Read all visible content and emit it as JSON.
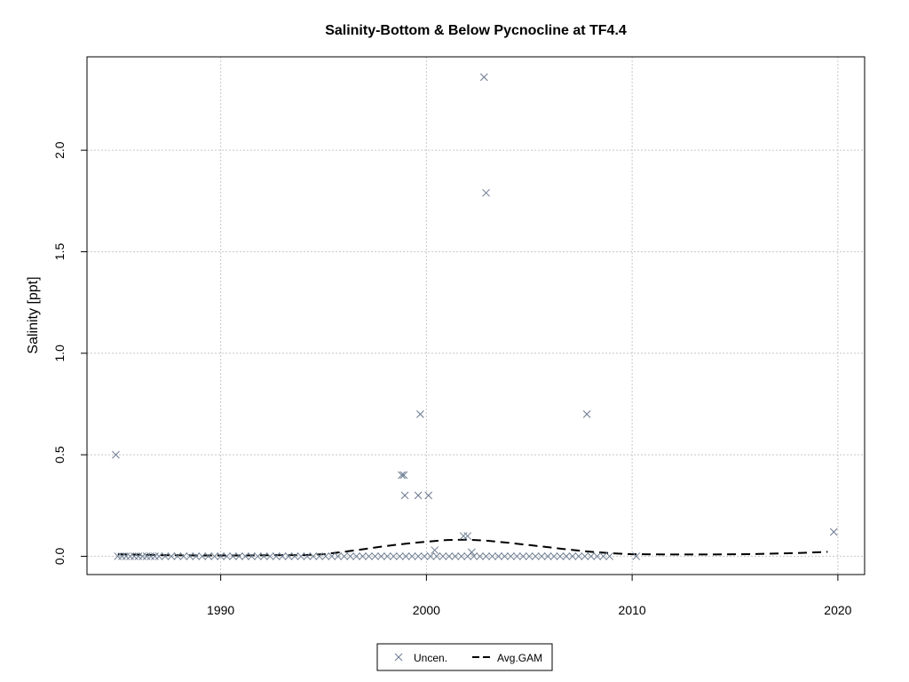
{
  "chart_data": {
    "type": "scatter",
    "title": "Salinity-Bottom & Below Pycnocline at TF4.4",
    "xlabel": "",
    "ylabel": "Salinity [ppt]",
    "xlim": [
      1983.5,
      2021.3
    ],
    "ylim": [
      -0.09,
      2.46
    ],
    "x_ticks": [
      1990,
      2000,
      2010,
      2020
    ],
    "y_ticks": [
      0.0,
      0.5,
      1.0,
      1.5,
      2.0
    ],
    "x_tick_labels": [
      "1990",
      "2000",
      "2010",
      "2020"
    ],
    "y_tick_labels": [
      "0.0",
      "0.5",
      "1.0",
      "1.5",
      "2.0"
    ],
    "grid": true,
    "legend": {
      "position": "bottom-center",
      "entries": [
        "Uncen.",
        "Avg.GAM"
      ]
    },
    "series": [
      {
        "name": "Uncen.",
        "marker": "x",
        "color": "#6b7a90",
        "baseline_points": {
          "y": 0.0,
          "x": [
            1985.0,
            1985.2,
            1985.4,
            1985.6,
            1985.8,
            1986.0,
            1986.2,
            1986.4,
            1986.6,
            1986.8,
            1987.0,
            1987.3,
            1987.6,
            1987.9,
            1988.2,
            1988.5,
            1988.8,
            1989.1,
            1989.4,
            1989.7,
            1990.0,
            1990.3,
            1990.6,
            1990.9,
            1991.2,
            1991.5,
            1991.8,
            1992.1,
            1992.4,
            1992.7,
            1993.0,
            1993.3,
            1993.6,
            1993.9,
            1994.2,
            1994.5,
            1994.8,
            1995.1,
            1995.4,
            1995.7,
            1996.0,
            1996.3,
            1996.6,
            1996.9,
            1997.2,
            1997.5,
            1997.8,
            1998.1,
            1998.4,
            1998.7,
            1999.0,
            1999.3,
            1999.6,
            1999.9,
            2000.2,
            2000.5,
            2000.8,
            2001.1,
            2001.4,
            2001.7,
            2002.0,
            2002.3,
            2002.6,
            2002.9,
            2003.2,
            2003.5,
            2003.8,
            2004.1,
            2004.4,
            2004.7,
            2005.0,
            2005.3,
            2005.6,
            2005.9,
            2006.2,
            2006.5,
            2006.8,
            2007.1,
            2007.4,
            2007.7,
            2008.0,
            2008.3,
            2008.6,
            2008.9,
            2010.2
          ]
        },
        "points": [
          [
            1984.9,
            0.5
          ],
          [
            1998.8,
            0.4
          ],
          [
            1998.9,
            0.4
          ],
          [
            1998.95,
            0.3
          ],
          [
            1999.6,
            0.3
          ],
          [
            1999.7,
            0.7
          ],
          [
            2000.1,
            0.3
          ],
          [
            2000.4,
            0.03
          ],
          [
            2001.8,
            0.1
          ],
          [
            2002.0,
            0.1
          ],
          [
            2002.2,
            0.02
          ],
          [
            2002.8,
            2.36
          ],
          [
            2002.9,
            1.79
          ],
          [
            2007.8,
            0.7
          ],
          [
            2019.8,
            0.12
          ]
        ]
      },
      {
        "name": "Avg.GAM",
        "type": "line",
        "dash": "dashed",
        "color": "#000000",
        "x": [
          1985.0,
          1986.0,
          1987.0,
          1988.0,
          1989.0,
          1990.0,
          1991.0,
          1992.0,
          1993.0,
          1994.0,
          1995.0,
          1996.0,
          1997.0,
          1998.0,
          1999.0,
          2000.0,
          2001.0,
          2002.0,
          2003.0,
          2004.0,
          2005.0,
          2006.0,
          2007.0,
          2008.0,
          2009.0,
          2010.0,
          2012.0,
          2014.0,
          2016.0,
          2018.0,
          2019.5
        ],
        "y": [
          0.01,
          0.008,
          0.006,
          0.005,
          0.004,
          0.004,
          0.004,
          0.005,
          0.006,
          0.006,
          0.01,
          0.022,
          0.036,
          0.05,
          0.062,
          0.072,
          0.08,
          0.082,
          0.076,
          0.066,
          0.055,
          0.044,
          0.032,
          0.022,
          0.015,
          0.01,
          0.009,
          0.009,
          0.011,
          0.016,
          0.022
        ]
      }
    ]
  }
}
